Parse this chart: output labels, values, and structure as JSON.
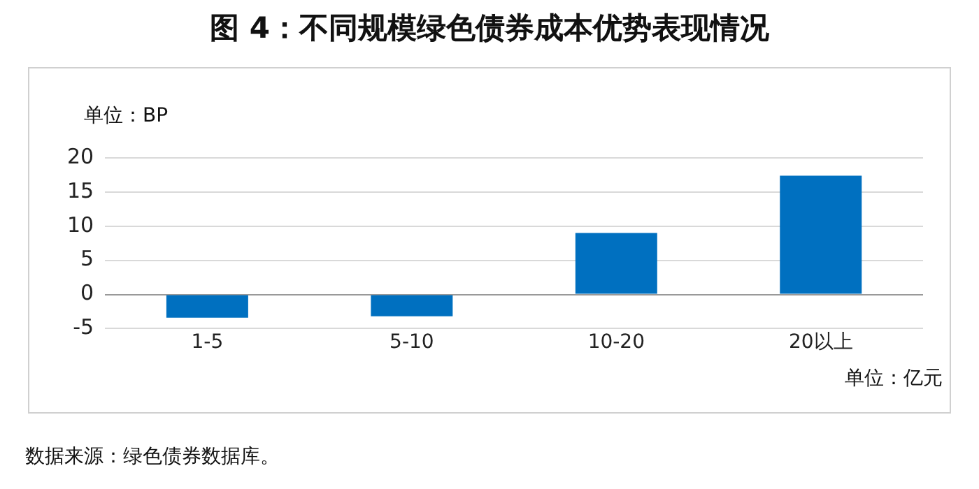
{
  "chart_data": {
    "type": "bar",
    "title": "图 4：不同规模绿色债券成本优势表现情况",
    "ylabel": "单位：BP",
    "xlabel": "单位：亿元",
    "categories": [
      "1-5",
      "5-10",
      "10-20",
      "20以上"
    ],
    "values": [
      -3.4,
      -3.2,
      9,
      17.4
    ],
    "color": "#0070c0",
    "ylim": [
      -5,
      20
    ],
    "yticks": [
      -5,
      0,
      5,
      10,
      15,
      20
    ],
    "grid": "y",
    "annotations": [
      "数据来源：绿色债券数据库。"
    ]
  }
}
